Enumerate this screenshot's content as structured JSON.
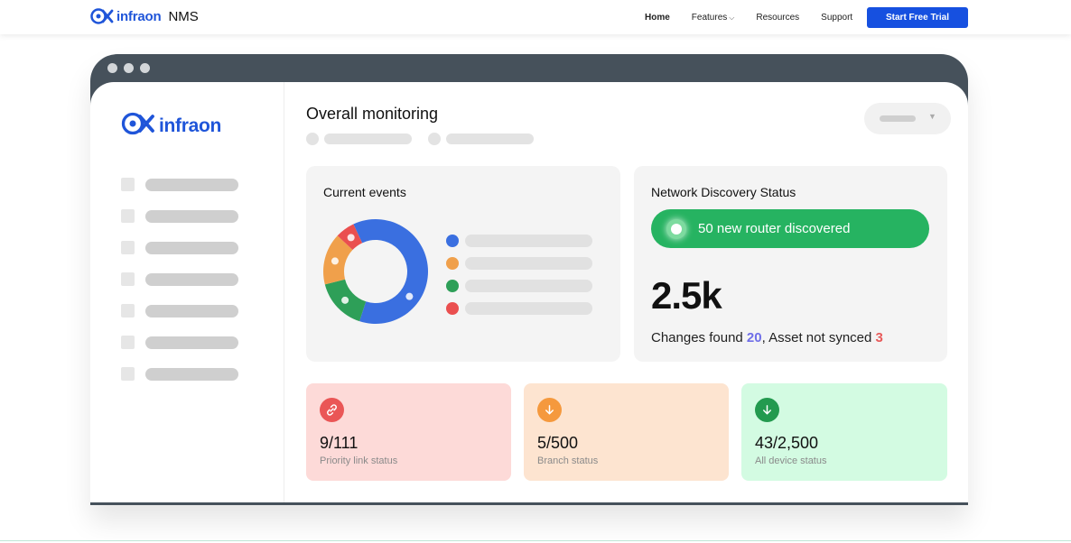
{
  "nav": {
    "brand": "infraon",
    "suffix": "NMS",
    "links": [
      "Home",
      "Features",
      "Resources",
      "Support"
    ],
    "features_chevron": "⌵",
    "cta": "Start Free Trial"
  },
  "app": {
    "logo": "infraon",
    "title": "Overall monitoring",
    "dropdown_caret": "▼",
    "events": {
      "title": "Current events",
      "chart_data": {
        "type": "pie",
        "values": [
          0.62,
          0.16,
          0.06,
          0.16
        ],
        "colors": [
          "#3a6fe0",
          "#f0a04b",
          "#ea4f4f",
          "#2e9f58"
        ]
      },
      "legend_colors": [
        "#3a6fe0",
        "#f0a04b",
        "#2e9f58",
        "#ea4f4f"
      ]
    },
    "network": {
      "title": "Network Discovery Status",
      "pill": "50 new router discovered",
      "big_number": "2.5k",
      "changes_label": "Changes found ",
      "changes_value": "20",
      "asset_label": ", Asset not synced ",
      "asset_value": "3"
    },
    "stats": [
      {
        "value": "9/111",
        "label": "Priority link status",
        "icon": "link-icon",
        "color": "#ea5656"
      },
      {
        "value": "5/500",
        "label": "Branch status",
        "icon": "arrow-down-icon",
        "color": "#f5993d"
      },
      {
        "value": "43/2,500",
        "label": "All device status",
        "icon": "arrow-down-icon",
        "color": "#239a4f"
      }
    ]
  }
}
